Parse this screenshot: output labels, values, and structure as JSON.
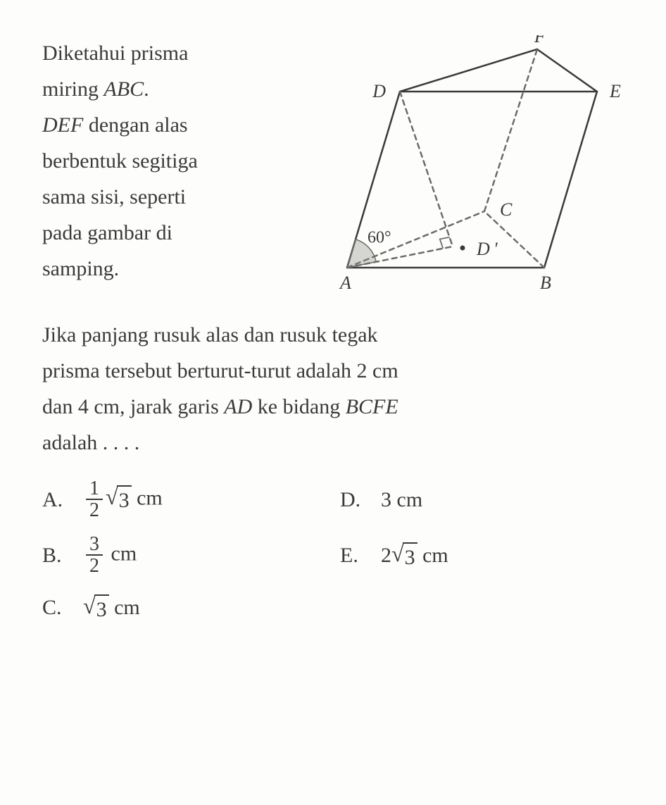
{
  "intro": {
    "line1a": "Diketahui prisma",
    "line2a": "miring ",
    "line2b": "ABC",
    "line2c": ".",
    "line3a": "DEF",
    "line3b": " dengan alas",
    "line4": "berbentuk segitiga",
    "line5": "sama sisi, seperti",
    "line6": "pada gambar di",
    "line7": "samping."
  },
  "figure": {
    "labels": {
      "A": "A",
      "B": "B",
      "C": "C",
      "D": "D",
      "E": "E",
      "F": "F",
      "Dprime": "D '",
      "angle": "60°"
    },
    "points": {
      "A": [
        40,
        330
      ],
      "B": [
        320,
        330
      ],
      "C": [
        235,
        250
      ],
      "D": [
        115,
        80
      ],
      "E": [
        395,
        80
      ],
      "F": [
        310,
        20
      ],
      "Dp": [
        190,
        300
      ]
    },
    "colors": {
      "stroke": "#3a3a38",
      "dash": "#6b6b68",
      "fill": "none",
      "angleFill": "#8a8a86"
    },
    "stroke_width": 2.5,
    "dash_pattern": "7,6",
    "font_size_label": 26,
    "angle_arc_r": 42
  },
  "body": {
    "l1": "Jika panjang rusuk alas dan rusuk tegak",
    "l2": "prisma tersebut berturut-turut adalah 2 cm",
    "l3a": "dan 4 cm, jarak garis ",
    "l3b": "AD",
    "l3c": " ke bidang ",
    "l3d": "BCFE",
    "l4": "adalah . . . ."
  },
  "options": {
    "A": {
      "letter": "A.",
      "frac_num": "1",
      "frac_den": "2",
      "rad": "3",
      "unit": " cm"
    },
    "B": {
      "letter": "B.",
      "frac_num": "3",
      "frac_den": "2",
      "unit": " cm"
    },
    "C": {
      "letter": "C.",
      "rad": "3",
      "unit": " cm"
    },
    "D": {
      "letter": "D.",
      "plain": "3 cm"
    },
    "E": {
      "letter": "E.",
      "coef": "2",
      "rad": "3",
      "unit": " cm"
    }
  }
}
